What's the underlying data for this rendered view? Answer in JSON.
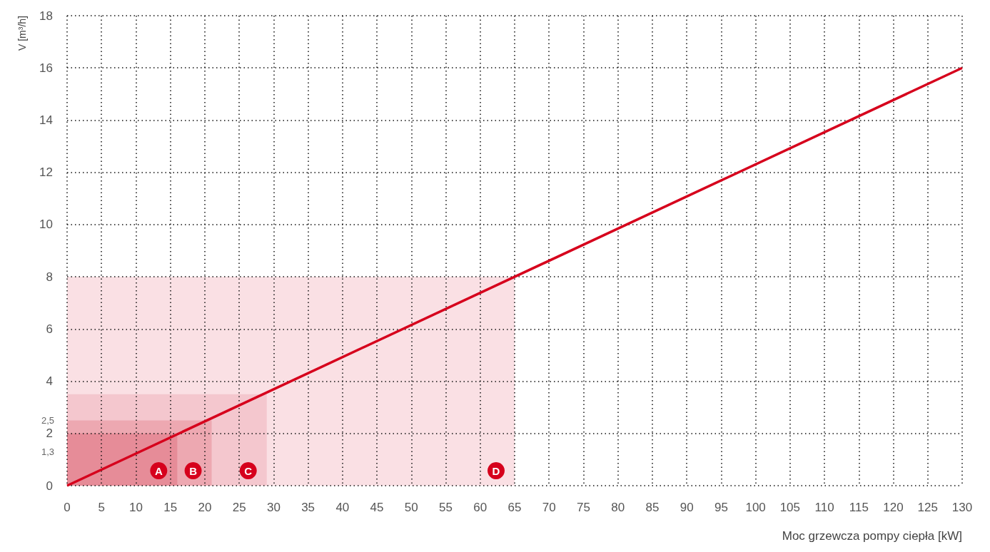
{
  "chart_data": {
    "type": "line",
    "ylabel": "V [m³/h]",
    "xlabel": "Moc grzewcza pompy ciepła [kW]",
    "xlim": [
      0,
      130
    ],
    "ylim": [
      0,
      18
    ],
    "xticks": [
      0,
      5,
      10,
      15,
      20,
      25,
      30,
      35,
      40,
      45,
      50,
      55,
      60,
      65,
      70,
      75,
      80,
      85,
      90,
      95,
      100,
      105,
      110,
      115,
      120,
      125,
      130
    ],
    "yticks": [
      0,
      {
        "value": 1.3,
        "label": "1,3"
      },
      2,
      {
        "value": 2.5,
        "label": "2,5"
      },
      4,
      6,
      8,
      10,
      12,
      14,
      16,
      18
    ],
    "grid": true,
    "series": [
      {
        "name": "D",
        "type": "area",
        "color": "#fae0e4",
        "x": [
          0,
          65
        ],
        "values": [
          8,
          8
        ]
      },
      {
        "name": "C",
        "type": "area",
        "color": "#f4c7ce",
        "x": [
          0,
          29
        ],
        "values": [
          3.5,
          3.5
        ]
      },
      {
        "name": "B",
        "type": "area",
        "color": "#eda8b1",
        "x": [
          0,
          21
        ],
        "values": [
          2.5,
          2.5
        ]
      },
      {
        "name": "A",
        "type": "area",
        "color": "#e68c98",
        "x": [
          0,
          16
        ],
        "values": [
          2,
          2
        ]
      },
      {
        "color": "#d6001c",
        "x": [
          0,
          130
        ],
        "values": [
          0,
          16
        ]
      }
    ]
  }
}
